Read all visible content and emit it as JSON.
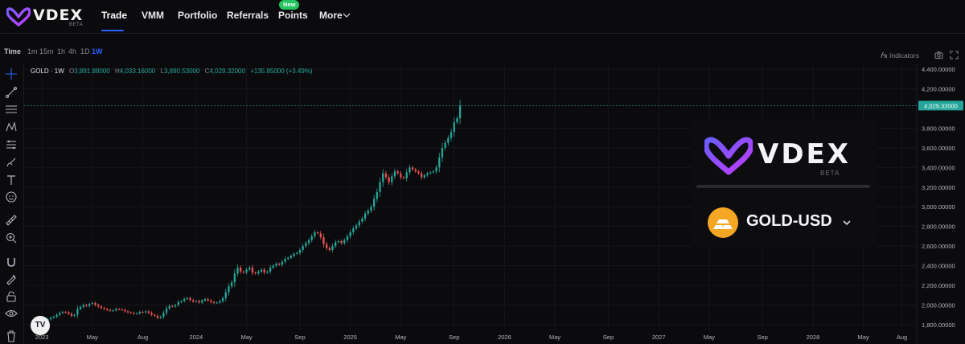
{
  "brand": {
    "name": "VDEX",
    "badge": "BETA"
  },
  "nav": {
    "items": [
      "Trade",
      "VMM",
      "Portfolio",
      "Referrals",
      "Points",
      "More"
    ],
    "active": "Trade",
    "points_badge": "New"
  },
  "chart_toolbar": {
    "time_label": "Time",
    "intervals": [
      "1m",
      "15m",
      "1h",
      "4h",
      "1D",
      "1W"
    ],
    "selected_interval": "1W",
    "indicators_label": "Indicators"
  },
  "legend": {
    "symbol": "GOLD · 1W",
    "open_label": "O",
    "open": "3,891.88000",
    "high_label": "H",
    "high": "4,033.16000",
    "low_label": "L",
    "low": "3,890.53000",
    "close_label": "C",
    "close": "4,029.32000",
    "change": "+135.85000 (+3.49%)"
  },
  "overlay": {
    "logo_word": "VDEX",
    "logo_badge": "BETA",
    "pair": "GOLD-USD",
    "pair_icon": "gold-bars-icon"
  },
  "tradingview_badge": "TV",
  "colors": {
    "up": "#26a69a",
    "down": "#ef5350",
    "accent": "#2962ff",
    "new_badge": "#22c55e",
    "gold": "#f5a623"
  },
  "chart_data": {
    "type": "candlestick",
    "symbol": "GOLD",
    "interval": "1W",
    "last_price_label": "4,029.32000",
    "ylim": [
      1750,
      4450
    ],
    "y_ticks": [
      {
        "value": 4400,
        "label": "4,400.00000"
      },
      {
        "value": 4200,
        "label": "4,200.00000"
      },
      {
        "value": 3800,
        "label": "3,800.00000"
      },
      {
        "value": 3600,
        "label": "3,600.00000"
      },
      {
        "value": 3400,
        "label": "3,400.00000"
      },
      {
        "value": 3200,
        "label": "3,200.00000"
      },
      {
        "value": 3000,
        "label": "3,000.00000"
      },
      {
        "value": 2800,
        "label": "2,800.00000"
      },
      {
        "value": 2600,
        "label": "2,600.00000"
      },
      {
        "value": 2400,
        "label": "2,400.00000"
      },
      {
        "value": 2200,
        "label": "2,200.00000"
      },
      {
        "value": 2000,
        "label": "2,000.00000"
      },
      {
        "value": 1800,
        "label": "1,800.00000"
      }
    ],
    "x_ticks": [
      {
        "week": 1,
        "label": "2023"
      },
      {
        "week": 18,
        "label": "May"
      },
      {
        "week": 35,
        "label": "Aug"
      },
      {
        "week": 53,
        "label": "2024"
      },
      {
        "week": 70,
        "label": "May"
      },
      {
        "week": 88,
        "label": "Sep"
      },
      {
        "week": 105,
        "label": "2025"
      },
      {
        "week": 122,
        "label": "May"
      },
      {
        "week": 140,
        "label": "Sep"
      },
      {
        "week": 157,
        "label": "2026"
      },
      {
        "week": 174,
        "label": "May"
      },
      {
        "week": 192,
        "label": "Sep"
      },
      {
        "week": 209,
        "label": "2027"
      },
      {
        "week": 226,
        "label": "May"
      },
      {
        "week": 244,
        "label": "Sep"
      },
      {
        "week": 261,
        "label": "2028"
      },
      {
        "week": 278,
        "label": "May"
      },
      {
        "week": 291,
        "label": "Aug"
      }
    ],
    "x_range_weeks": [
      -5,
      296
    ],
    "first_candle_week": -1,
    "closes": [
      1795,
      1810,
      1825,
      1840,
      1855,
      1870,
      1880,
      1900,
      1920,
      1930,
      1925,
      1910,
      1890,
      1900,
      1960,
      1980,
      2000,
      1990,
      2010,
      2020,
      2000,
      1985,
      1970,
      1960,
      1950,
      1940,
      1945,
      1960,
      1955,
      1950,
      1935,
      1925,
      1920,
      1910,
      1915,
      1930,
      1925,
      1935,
      1920,
      1900,
      1890,
      1870,
      1880,
      1920,
      1965,
      1990,
      1985,
      2000,
      2030,
      2040,
      2060,
      2070,
      2050,
      2035,
      2040,
      2025,
      2045,
      2060,
      2045,
      2030,
      2020,
      2025,
      2040,
      2070,
      2130,
      2190,
      2230,
      2320,
      2380,
      2340,
      2330,
      2360,
      2380,
      2330,
      2320,
      2340,
      2360,
      2330,
      2340,
      2380,
      2400,
      2420,
      2410,
      2440,
      2470,
      2480,
      2500,
      2520,
      2530,
      2560,
      2600,
      2630,
      2660,
      2700,
      2740,
      2730,
      2690,
      2620,
      2580,
      2560,
      2600,
      2640,
      2650,
      2630,
      2660,
      2700,
      2740,
      2780,
      2810,
      2850,
      2880,
      2930,
      2960,
      3000,
      3080,
      3150,
      3250,
      3340,
      3300,
      3250,
      3310,
      3360,
      3340,
      3300,
      3290,
      3350,
      3400,
      3380,
      3360,
      3340,
      3300,
      3320,
      3340,
      3350,
      3360,
      3400,
      3500,
      3600,
      3650,
      3700,
      3760,
      3860,
      3900,
      4029.32
    ]
  }
}
